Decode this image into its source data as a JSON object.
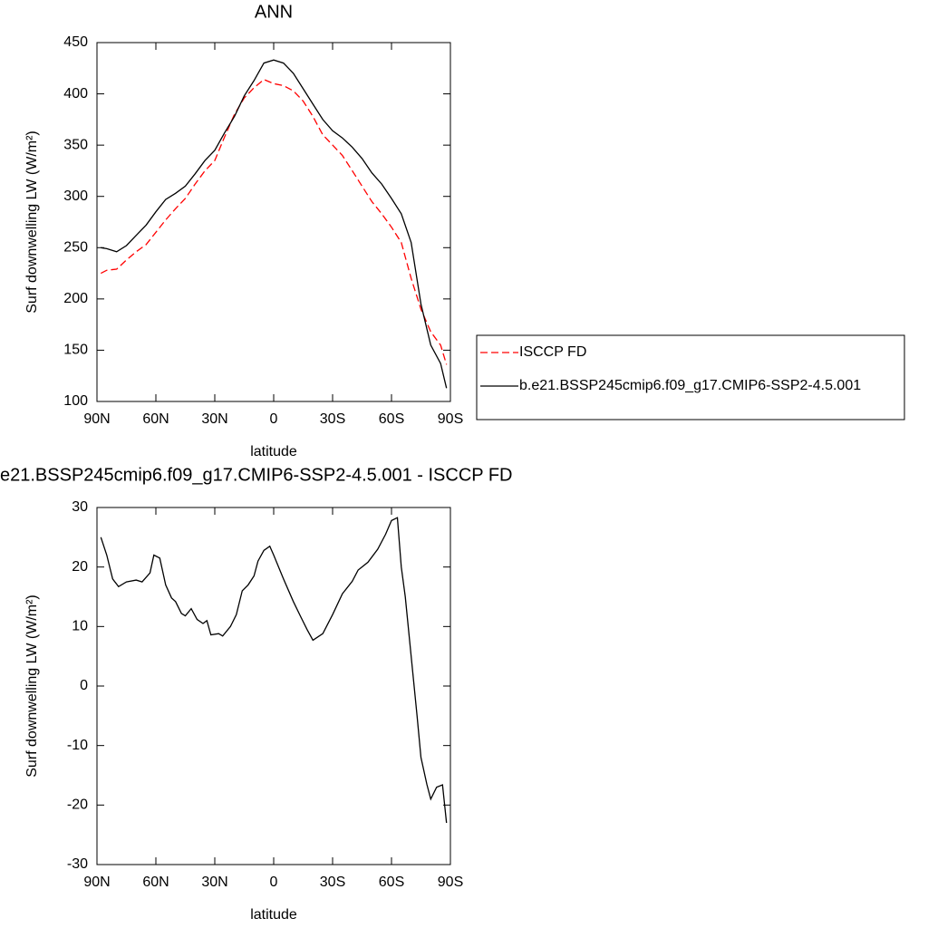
{
  "chart_data": [
    {
      "type": "line",
      "title": "ANN",
      "xlabel": "latitude",
      "ylabel": "Surf downwelling LW (W/m²)",
      "x": [
        88,
        85,
        80,
        75,
        70,
        65,
        60,
        55,
        50,
        45,
        40,
        35,
        30,
        25,
        20,
        15,
        10,
        5,
        0,
        -5,
        -10,
        -15,
        -20,
        -25,
        -30,
        -35,
        -40,
        -45,
        -50,
        -55,
        -60,
        -65,
        -70,
        -75,
        -80,
        -85,
        -88
      ],
      "series": [
        {
          "name": "ISCCP FD",
          "color": "#ff0000",
          "dashed": true,
          "values": [
            225,
            228,
            229,
            238,
            246,
            253,
            265,
            277,
            288,
            298,
            312,
            325,
            335,
            358,
            380,
            396,
            406,
            414,
            410,
            408,
            403,
            393,
            378,
            360,
            350,
            340,
            325,
            310,
            295,
            283,
            270,
            255,
            220,
            190,
            168,
            155,
            136
          ]
        },
        {
          "name": "b.e21.BSSP245cmip6.f09_g17.CMIP6-SSP2-4.5.001",
          "color": "#000000",
          "dashed": false,
          "values": [
            250,
            249,
            246,
            252,
            262,
            272,
            285,
            297,
            303,
            310,
            322,
            335,
            345,
            362,
            378,
            398,
            413,
            430,
            433,
            430,
            420,
            405,
            390,
            375,
            364,
            357,
            348,
            337,
            323,
            312,
            298,
            283,
            255,
            195,
            155,
            137,
            113
          ]
        }
      ],
      "xlim": [
        90,
        -90
      ],
      "xticks": [
        {
          "value": 90,
          "label": "90N"
        },
        {
          "value": 60,
          "label": "60N"
        },
        {
          "value": 30,
          "label": "30N"
        },
        0,
        {
          "value": -30,
          "label": "30S"
        },
        {
          "value": -60,
          "label": "60S"
        },
        {
          "value": -90,
          "label": "90S"
        }
      ],
      "ylim": [
        100,
        450
      ],
      "yticks": [
        100,
        150,
        200,
        250,
        300,
        350,
        400,
        450
      ],
      "legend": "right"
    },
    {
      "type": "line",
      "title": "e21.BSSP245cmip6.f09_g17.CMIP6-SSP2-4.5.001 - ISCCP FD",
      "xlabel": "latitude",
      "ylabel": "Surf downwelling LW (W/m²)",
      "x": [
        88,
        85,
        82,
        79,
        75,
        70,
        67,
        63,
        61,
        58,
        55,
        52,
        50,
        47,
        45,
        42,
        39,
        36,
        34,
        32,
        28,
        26,
        22,
        19,
        16,
        13,
        10,
        8,
        5,
        2,
        0,
        -5,
        -10,
        -14,
        -17,
        -20,
        -25,
        -30,
        -35,
        -40,
        -43,
        -48,
        -53,
        -57,
        -60,
        -63,
        -65,
        -67,
        -70,
        -73,
        -75,
        -78,
        -80,
        -83,
        -86,
        -88
      ],
      "series": [
        {
          "color": "#000000",
          "dashed": false,
          "values": [
            25,
            22,
            18,
            16.7,
            17.5,
            17.8,
            17.5,
            19,
            22,
            21.5,
            17,
            14.8,
            14.2,
            12.2,
            11.8,
            13,
            11.2,
            10.5,
            11,
            8.6,
            8.8,
            8.4,
            10,
            12,
            16,
            17,
            18.5,
            21,
            22.8,
            23.5,
            22,
            18,
            14.2,
            11.5,
            9.5,
            7.7,
            8.8,
            12,
            15.5,
            17.6,
            19.5,
            20.8,
            23,
            25.5,
            27.8,
            28.3,
            20,
            15,
            5,
            -5,
            -12,
            -16.5,
            -19,
            -17,
            -16.6,
            -23
          ]
        }
      ],
      "xlim": [
        90,
        -90
      ],
      "xticks": [
        {
          "value": 90,
          "label": "90N"
        },
        {
          "value": 60,
          "label": "60N"
        },
        {
          "value": 30,
          "label": "30N"
        },
        0,
        {
          "value": -30,
          "label": "30S"
        },
        {
          "value": -60,
          "label": "60S"
        },
        {
          "value": -90,
          "label": "90S"
        }
      ],
      "ylim": [
        -30,
        30
      ],
      "yticks": [
        -30,
        -20,
        -10,
        0,
        10,
        20,
        30
      ]
    }
  ]
}
